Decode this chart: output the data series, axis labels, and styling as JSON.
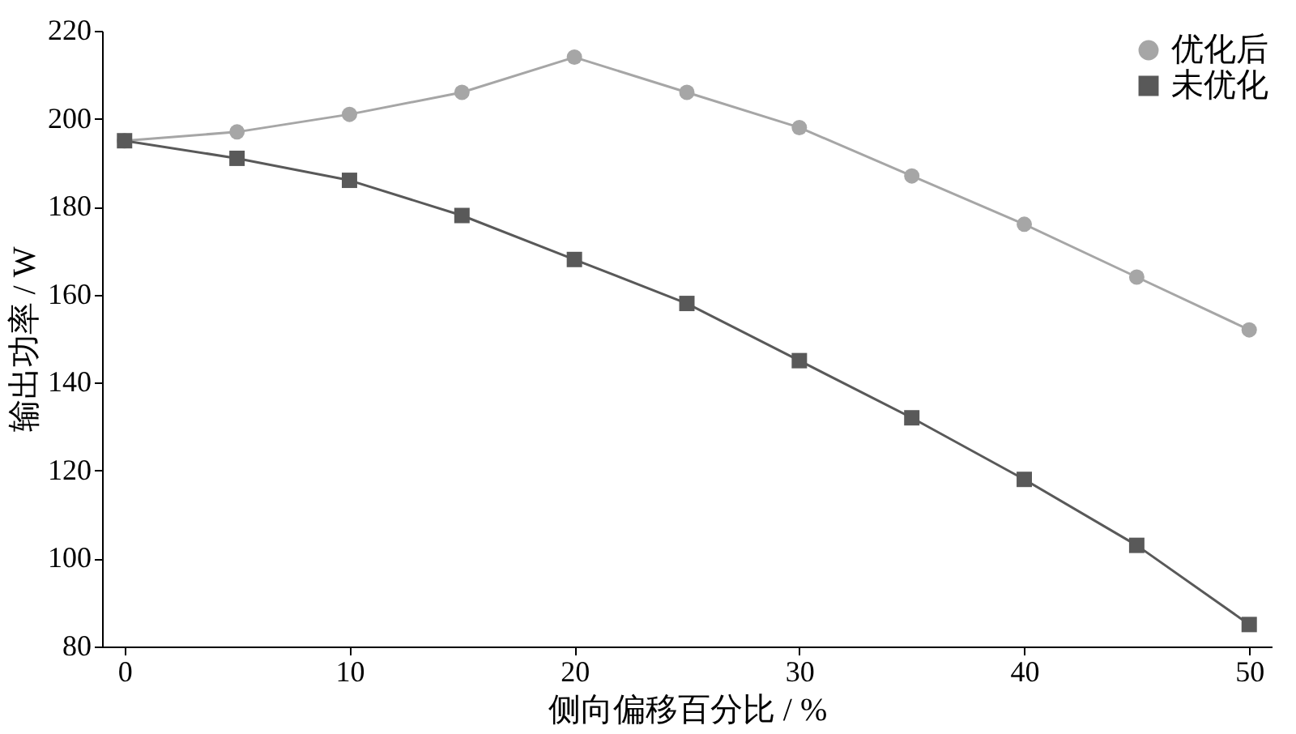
{
  "chart_data": {
    "type": "line",
    "xlabel": "侧向偏移百分比 / %",
    "ylabel": "输出功率 / W",
    "x": [
      0,
      5,
      10,
      15,
      20,
      25,
      30,
      35,
      40,
      45,
      50
    ],
    "series": [
      {
        "name": "优化后",
        "color": "#a6a6a6",
        "marker": "circle",
        "values": [
          195,
          197,
          201,
          206,
          214,
          206,
          198,
          187,
          176,
          164,
          152
        ]
      },
      {
        "name": "未优化",
        "color": "#595959",
        "marker": "square",
        "values": [
          195,
          191,
          186,
          178,
          168,
          158,
          145,
          132,
          118,
          103,
          85
        ]
      }
    ],
    "xlim": [
      -1,
      51
    ],
    "xticks": [
      0,
      10,
      20,
      30,
      40,
      50
    ],
    "ylim": [
      80,
      220
    ],
    "yticks": [
      80,
      100,
      120,
      140,
      160,
      180,
      200,
      220
    ],
    "grid": false,
    "legend": "top right",
    "line_style": "solid"
  }
}
